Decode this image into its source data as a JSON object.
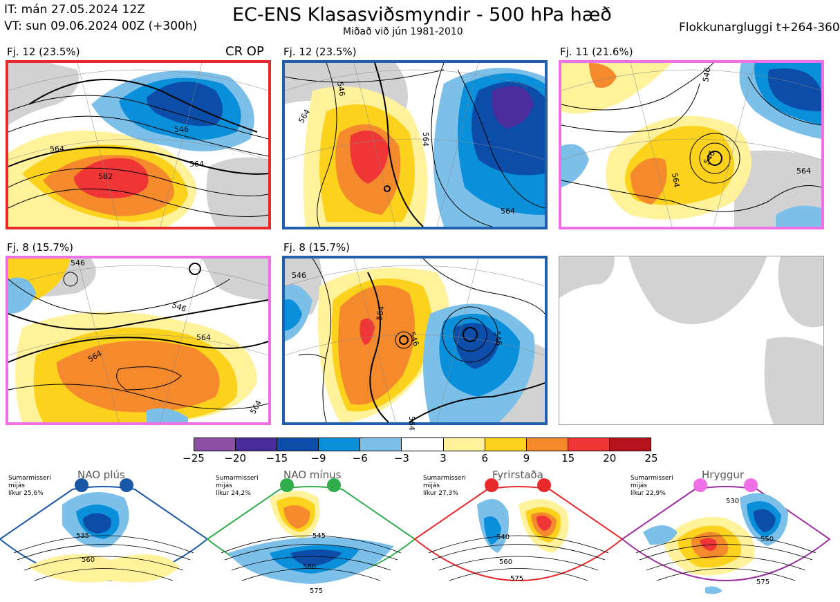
{
  "header": {
    "init_time": "IT: mán 27.05.2024 12Z",
    "valid_time": "VT: sun 09.06.2024 00Z  (+300h)",
    "title": "EC-ENS Klasasviðsmyndir - 500 hPa hæð",
    "subtitle": "Miðað við jún 1981-2010",
    "window": "Flokkunargluggi t+264-360"
  },
  "panels": [
    {
      "label": "Fj. 12 (23.5%)",
      "frame_color": "#e8292b",
      "extra": "CR OP",
      "contour_labels": [
        "546",
        "564",
        "564",
        "582"
      ]
    },
    {
      "label": "Fj. 12 (23.5%)",
      "frame_color": "#1f5fae",
      "extra": "",
      "contour_labels": [
        "546",
        "564",
        "564",
        "564"
      ]
    },
    {
      "label": "Fj. 11 (21.6%)",
      "frame_color": "#ee6fe6",
      "extra": "",
      "contour_labels": [
        "546",
        "564",
        "564",
        "546"
      ]
    },
    {
      "label": "Fj. 8 (15.7%)",
      "frame_color": "#ee6fe6",
      "extra": "",
      "contour_labels": [
        "546",
        "546",
        "564",
        "564",
        "564"
      ]
    },
    {
      "label": "Fj. 8 (15.7%)",
      "frame_color": "#1f5fae",
      "extra": "",
      "contour_labels": [
        "564",
        "546",
        "546",
        "546",
        "564"
      ]
    }
  ],
  "colorbar": {
    "colors": [
      "#8c4fa3",
      "#4a2c9a",
      "#0b4da8",
      "#0a8fdb",
      "#7cc0ea",
      "#ffffff",
      "#fff29a",
      "#fdd21c",
      "#f58a2c",
      "#ef3535",
      "#b5121b"
    ],
    "ticks": [
      "−25",
      "−20",
      "−15",
      "−9",
      "−6",
      "−3",
      "3",
      "6",
      "9",
      "15",
      "20",
      "25"
    ]
  },
  "regimes": [
    {
      "name": "NAO plús",
      "season": "Sumarmisseri",
      "meta": "mijás",
      "prob": "líkur 25,6%",
      "color": "#1a57a6",
      "labels": [
        "535",
        "560"
      ]
    },
    {
      "name": "NAO mínus",
      "season": "Sumarmisseri",
      "meta": "mijás",
      "prob": "líkur 24,2%",
      "color": "#2fae4b",
      "labels": [
        "545",
        "560",
        "575"
      ]
    },
    {
      "name": "Fyrirstaða",
      "season": "Sumarmisseri",
      "meta": "mijás",
      "prob": "líkur 27,3%",
      "color": "#e8292b",
      "labels": [
        "540",
        "560",
        "575"
      ]
    },
    {
      "name": "Hryggur",
      "season": "Sumarmisseri",
      "meta": "mijás",
      "prob": "líkur 22,9%",
      "color": "#9b2fa0",
      "labels": [
        "530",
        "550",
        "575"
      ]
    }
  ]
}
